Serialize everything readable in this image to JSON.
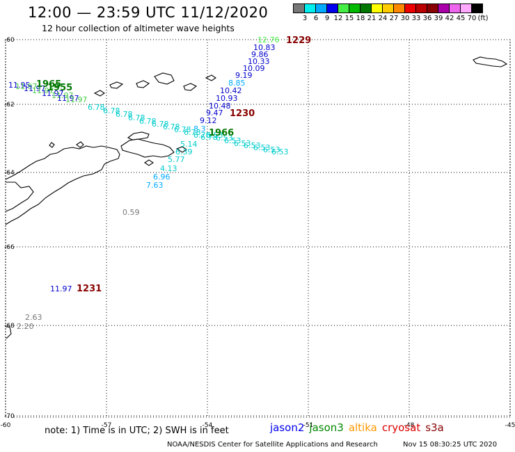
{
  "header": {
    "title": "12:00 — 23:59 UTC 11/12/2020",
    "subtitle": "12 hour collection of altimeter wave heights"
  },
  "colorbar": {
    "colors": [
      "#777777",
      "#00eeee",
      "#00aaff",
      "#0000ee",
      "#44ee44",
      "#00bb00",
      "#007700",
      "#ffff00",
      "#ffcc00",
      "#ff8800",
      "#ee0000",
      "#bb0000",
      "#880000",
      "#aa00aa",
      "#ee66ee",
      "#ffaaff",
      "#000000"
    ],
    "labels": [
      "3",
      "6",
      "9",
      "12",
      "15",
      "18",
      "21",
      "24",
      "27",
      "30",
      "33",
      "36",
      "39",
      "42",
      "45",
      "70",
      "(ft)"
    ]
  },
  "axes": {
    "lat_labels": [
      "-60",
      "-62",
      "-64",
      "-66",
      "-68",
      "-70"
    ],
    "lon_labels": [
      "-60",
      "-57",
      "-54",
      "-51",
      "-48",
      "-45"
    ]
  },
  "observations": [
    {
      "text": "12.76",
      "color": "#44ee44"
    },
    {
      "text": "10.83",
      "color": "#0000cc"
    },
    {
      "text": "9.86",
      "color": "#0000cc"
    },
    {
      "text": "10.33",
      "color": "#0000cc"
    },
    {
      "text": "10.09",
      "color": "#0000cc"
    },
    {
      "text": "9.19",
      "color": "#0000cc"
    },
    {
      "text": "8.85",
      "color": "#00aaff"
    },
    {
      "text": "10.42",
      "color": "#0000cc"
    },
    {
      "text": "10.93",
      "color": "#0000cc"
    },
    {
      "text": "10.48",
      "color": "#0000cc"
    },
    {
      "text": "9.47",
      "color": "#0000cc"
    },
    {
      "text": "9.12",
      "color": "#0000cc"
    },
    {
      "text": "8.3",
      "color": "#00aaff"
    },
    {
      "text": "5.14",
      "color": "#00cccc"
    },
    {
      "text": "6.39",
      "color": "#00cccc"
    },
    {
      "text": "5.77",
      "color": "#00cccc"
    },
    {
      "text": "4.13",
      "color": "#00cccc"
    },
    {
      "text": "6.96",
      "color": "#00aaff"
    },
    {
      "text": "7.63",
      "color": "#00aaff"
    },
    {
      "text": "0.59",
      "color": "#777777"
    },
    {
      "text": "11.97",
      "color": "#0000cc"
    },
    {
      "text": "2.63",
      "color": "#777777"
    },
    {
      "text": "2.20",
      "color": "#777777"
    },
    {
      "text": "11.95",
      "color": "#0000cc"
    }
  ],
  "cycles": [
    {
      "text": "1229",
      "color": "#880000"
    },
    {
      "text": "1230",
      "color": "#880000"
    },
    {
      "text": "1231",
      "color": "#880000"
    },
    {
      "text": "1965",
      "color": "#007700"
    },
    {
      "text": "1955",
      "color": "#007700"
    },
    {
      "text": "1966",
      "color": "#007700"
    }
  ],
  "note": "note: 1) Time is in UTC; 2) SWH is in feet",
  "legend": [
    {
      "label": "jason2",
      "color": "#0000ee"
    },
    {
      "label": "jason3",
      "color": "#008800"
    },
    {
      "label": "altika",
      "color": "#ff9900"
    },
    {
      "label": "cryosat",
      "color": "#dd0000"
    },
    {
      "label": "s3a",
      "color": "#880000"
    }
  ],
  "footer": {
    "org": "NOAA/NESDIS Center for Satellite Applications and Research",
    "timestamp": "Nov 15 08:30:25 UTC 2020"
  }
}
